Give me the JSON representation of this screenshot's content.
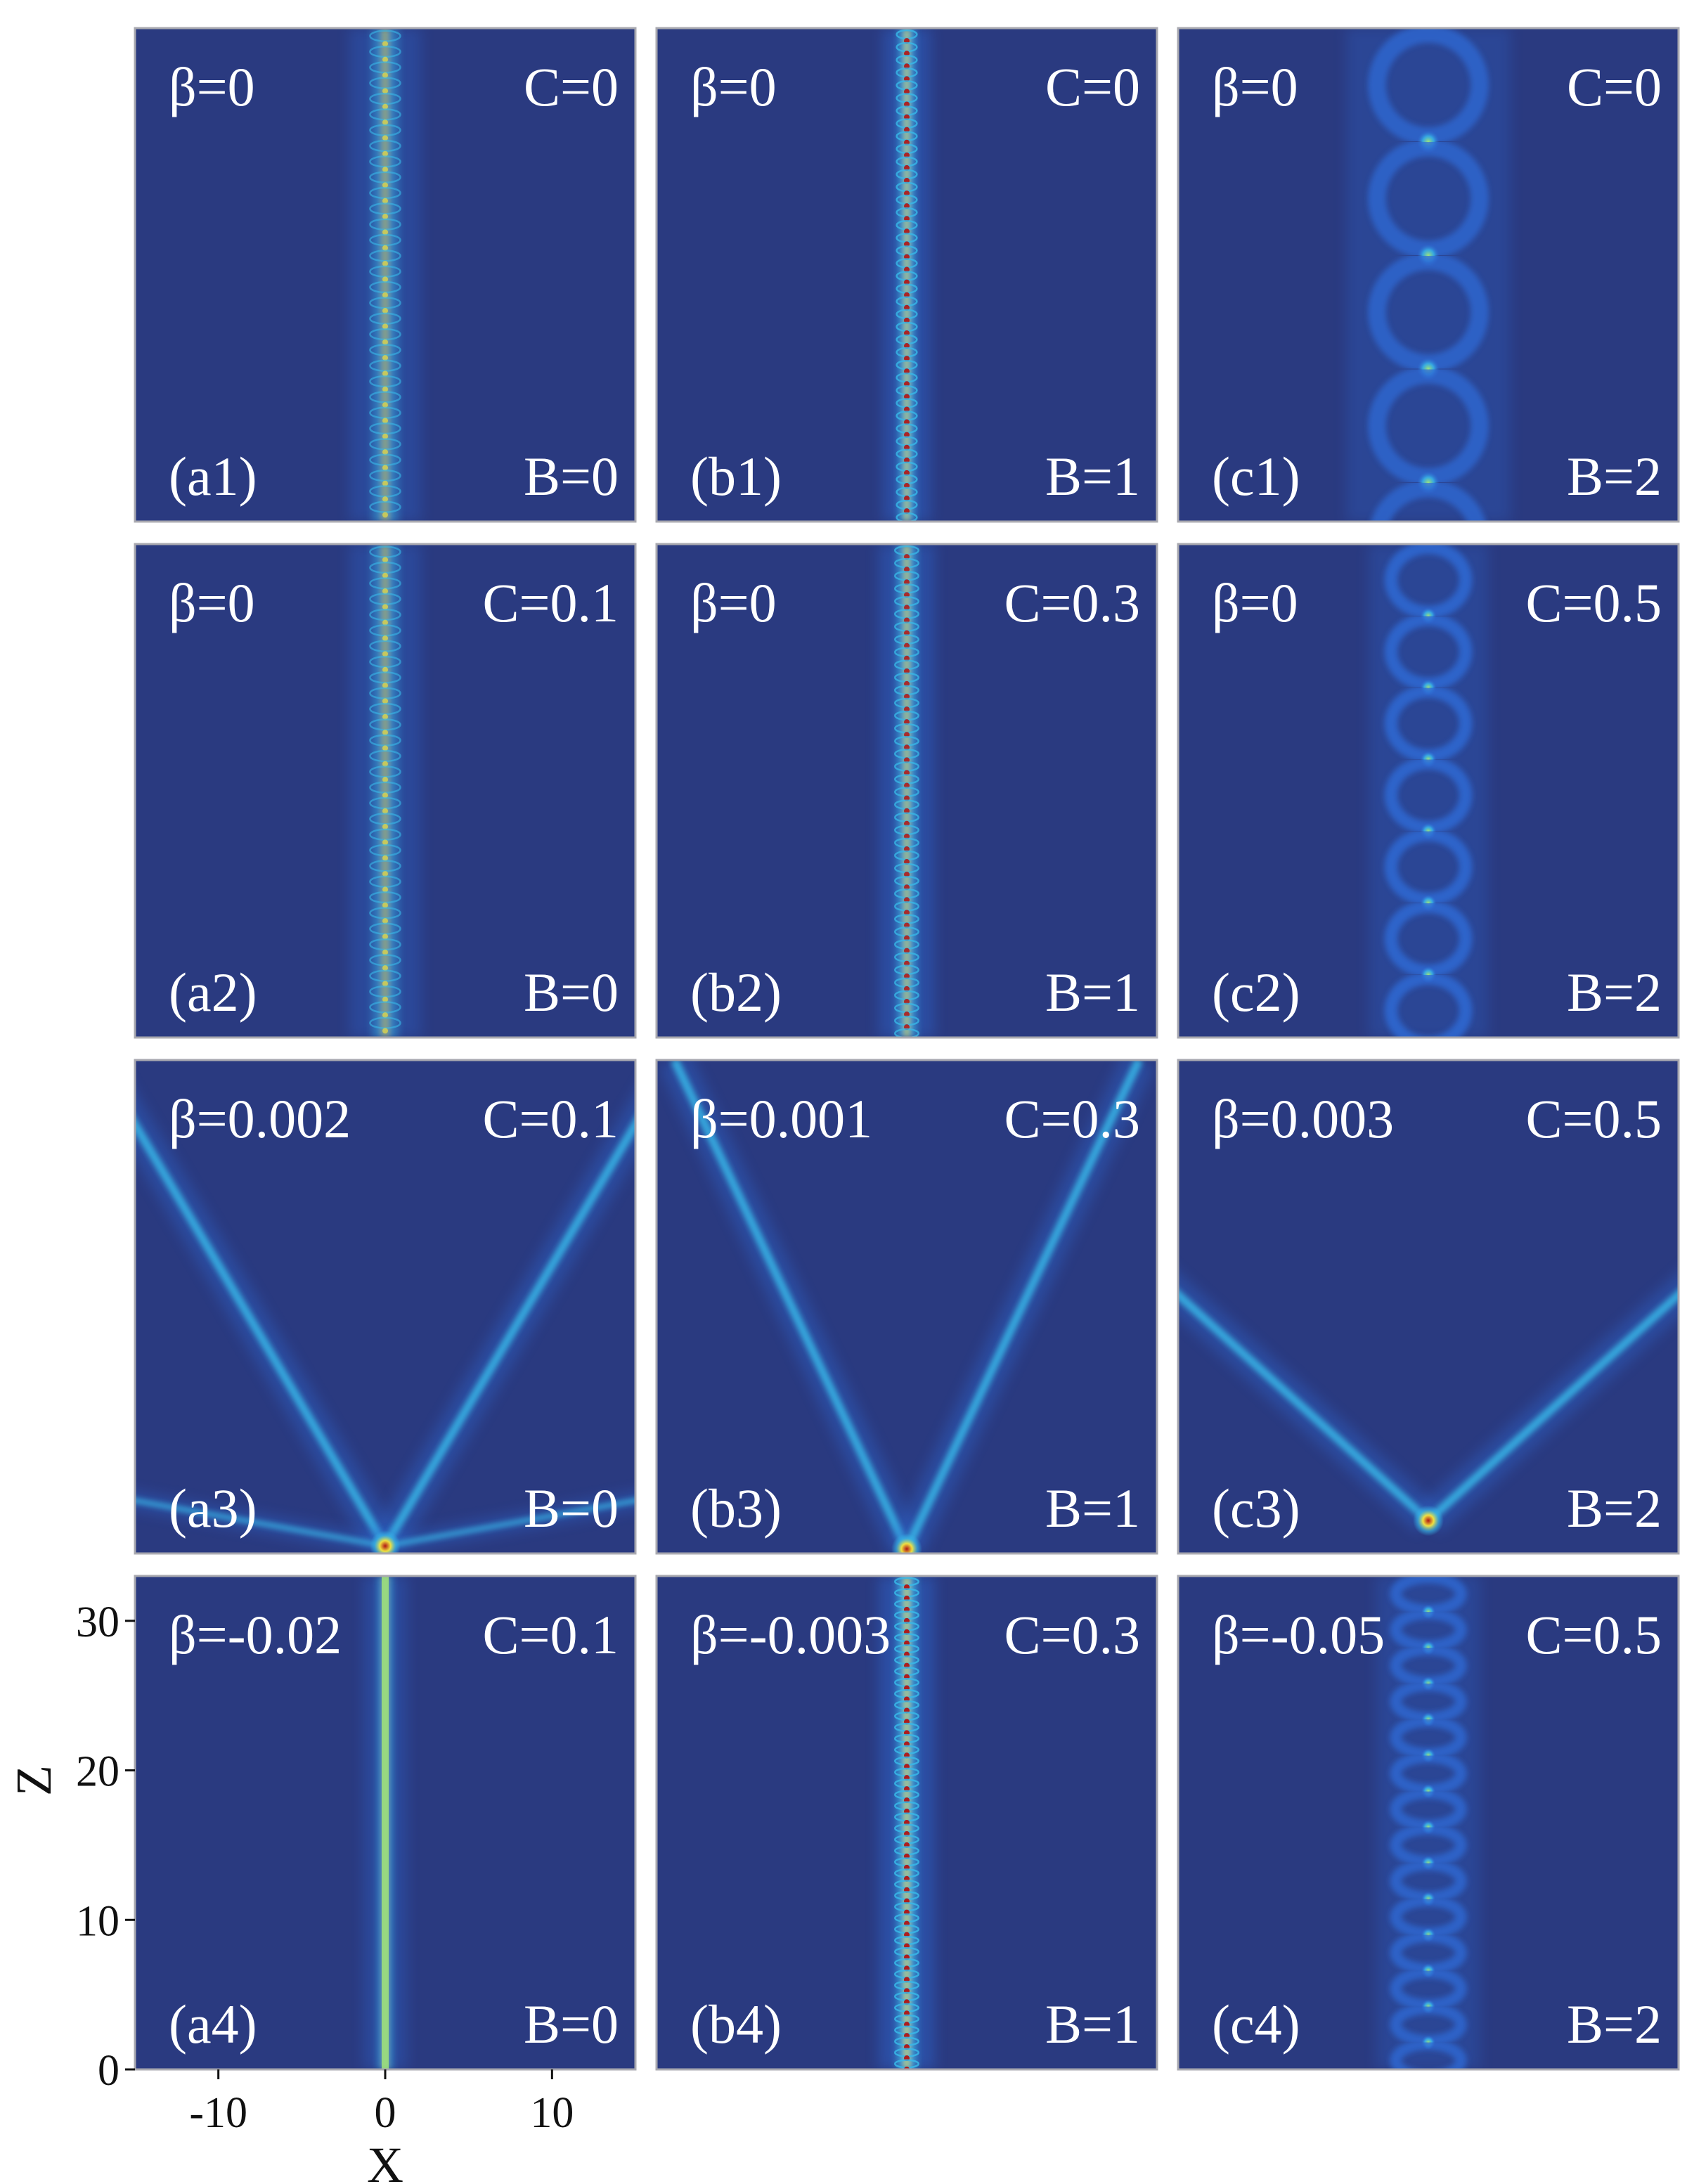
{
  "chart_data": {
    "type": "heatmap",
    "xlabel": "X",
    "ylabel": "Z",
    "xlim": [
      -15,
      15
    ],
    "ylim": [
      0,
      33
    ],
    "x_ticks": [
      -10,
      0,
      10
    ],
    "y_ticks": [
      0,
      10,
      20,
      30
    ],
    "colormap": [
      "#1e2d66",
      "#2f6bd6",
      "#38b8e8",
      "#9fe37a",
      "#f0e040",
      "#e86a1e",
      "#b01414"
    ],
    "background_color": "#2a3a80",
    "panels": [
      {
        "id": "a1",
        "label": "(a1)",
        "beta": "β=0",
        "C": "C=0",
        "B": "B=0",
        "pattern": "breathing",
        "beam_x": 0,
        "period": 1.05,
        "width": 0.9,
        "intensity": 0.65
      },
      {
        "id": "b1",
        "label": "(b1)",
        "beta": "β=0",
        "C": "C=0",
        "B": "B=1",
        "pattern": "breathing",
        "beam_x": 0,
        "period": 0.85,
        "width": 0.6,
        "intensity": 0.9
      },
      {
        "id": "c1",
        "label": "(c1)",
        "beta": "β=0",
        "C": "C=0",
        "B": "B=2",
        "pattern": "chain",
        "beam_x": 0,
        "period": 7.6,
        "width": 2.2,
        "intensity": 0.3
      },
      {
        "id": "a2",
        "label": "(a2)",
        "beta": "β=0",
        "C": "C=0.1",
        "B": "B=0",
        "pattern": "breathing",
        "beam_x": 0,
        "period": 1.05,
        "width": 0.9,
        "intensity": 0.65
      },
      {
        "id": "b2",
        "label": "(b2)",
        "beta": "β=0",
        "C": "C=0.3",
        "B": "B=1",
        "pattern": "breathing",
        "beam_x": 0,
        "period": 0.85,
        "width": 0.7,
        "intensity": 0.85
      },
      {
        "id": "c2",
        "label": "(c2)",
        "beta": "β=0",
        "C": "C=0.5",
        "B": "B=2",
        "pattern": "chain",
        "beam_x": 0,
        "period": 4.8,
        "width": 1.6,
        "intensity": 0.45
      },
      {
        "id": "a3",
        "label": "(a3)",
        "beta": "β=0.002",
        "C": "C=0.1",
        "B": "B=0",
        "pattern": "v_split",
        "origin_z": 0.5,
        "slope": 0.6,
        "arms": 4,
        "intensity": 0.5
      },
      {
        "id": "b3",
        "label": "(b3)",
        "beta": "β=0.001",
        "C": "C=0.3",
        "B": "B=1",
        "pattern": "v_split",
        "origin_z": 0.3,
        "slope": 0.48,
        "arms": 2,
        "intensity": 0.45
      },
      {
        "id": "c3",
        "label": "(c3)",
        "beta": "β=0.003",
        "C": "C=0.5",
        "B": "B=2",
        "pattern": "v_split",
        "origin_z": 2.2,
        "slope": 1.12,
        "arms": 2,
        "intensity": 0.45
      },
      {
        "id": "a4",
        "label": "(a4)",
        "beta": "β=-0.02",
        "C": "C=0.1",
        "B": "B=0",
        "pattern": "straight",
        "beam_x": 0,
        "width": 0.55,
        "intensity": 0.7
      },
      {
        "id": "b4",
        "label": "(b4)",
        "beta": "β=-0.003",
        "C": "C=0.3",
        "B": "B=1",
        "pattern": "breathing",
        "beam_x": 0,
        "period": 0.75,
        "width": 0.7,
        "intensity": 0.95
      },
      {
        "id": "c4",
        "label": "(c4)",
        "beta": "β=-0.05",
        "C": "C=0.5",
        "B": "B=2",
        "pattern": "chain",
        "beam_x": 0,
        "period": 2.4,
        "width": 1.4,
        "intensity": 0.35
      }
    ]
  }
}
